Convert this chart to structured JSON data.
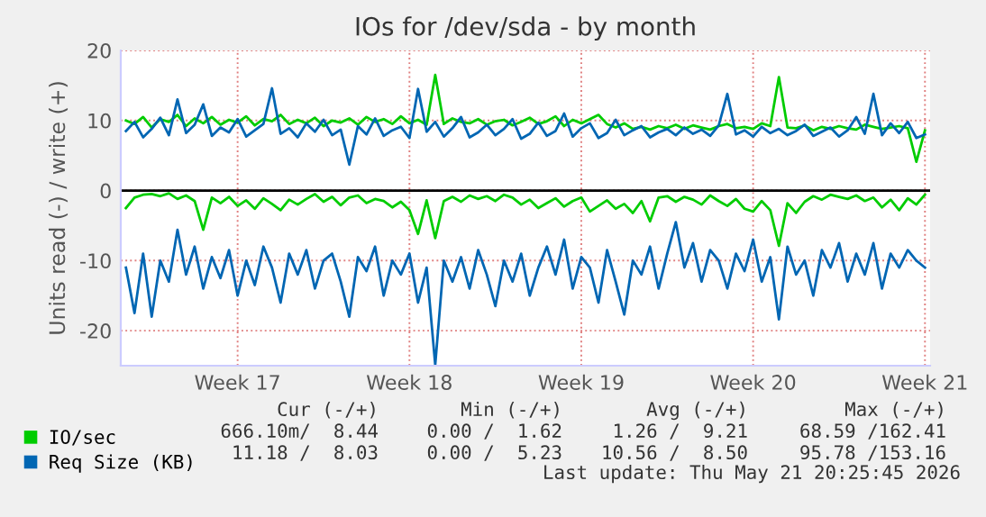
{
  "chart_data": {
    "type": "line",
    "title": "IOs for /dev/sda - by month",
    "ylabel": "Units read (-) / write (+)",
    "categories": [
      null,
      null,
      null,
      null,
      null,
      null,
      null,
      null,
      null,
      null,
      null,
      null,
      null,
      "Week 17",
      null,
      null,
      null,
      null,
      null,
      null,
      null,
      null,
      null,
      null,
      null,
      null,
      null,
      null,
      null,
      null,
      null,
      null,
      null,
      "Week 18",
      null,
      null,
      null,
      null,
      null,
      null,
      null,
      null,
      null,
      null,
      null,
      null,
      null,
      null,
      null,
      null,
      null,
      null,
      null,
      "Week 19",
      null,
      null,
      null,
      null,
      null,
      null,
      null,
      null,
      null,
      null,
      null,
      null,
      null,
      null,
      null,
      null,
      null,
      null,
      null,
      "Week 20",
      null,
      null,
      null,
      null,
      null,
      null,
      null,
      null,
      null,
      null,
      null,
      null,
      null,
      null,
      null,
      null,
      null,
      null,
      null,
      "Week 21"
    ],
    "series": [
      {
        "name": "IO/sec",
        "color": "#00cc00",
        "values": [
          10,
          9.5,
          10.5,
          9,
          10.2,
          9.8,
          10.8,
          9.2,
          10.3,
          9.6,
          10.5,
          9.4,
          10.1,
          9.7,
          10.6,
          9.3,
          10.2,
          9.9,
          10.8,
          9.5,
          10.1,
          9.6,
          10.4,
          9.2,
          10.0,
          9.7,
          10.3,
          9.4,
          10.5,
          9.8,
          10.2,
          9.5,
          10.6,
          9.6,
          10.1,
          9.4,
          16.5,
          9.5,
          10.3,
          9.8,
          9.6,
          10.2,
          9.4,
          9.9,
          10.1,
          9.3,
          9.8,
          10.4,
          9.5,
          9.9,
          10.6,
          9.2,
          10.1,
          9.6,
          10.2,
          10.8,
          9.5,
          9.0,
          9.6,
          8.8,
          9.1,
          8.7,
          9.2,
          8.9,
          9.4,
          8.8,
          9.3,
          9.0,
          8.7,
          9.2,
          9.5,
          8.9,
          9.1,
          8.8,
          9.6,
          9.2,
          16.2,
          9.0,
          8.9,
          9.3,
          8.6,
          9.1,
          8.8,
          9.2,
          8.9,
          8.7,
          9.4,
          9.1,
          8.8,
          9.0,
          9.2,
          8.9,
          4.1,
          8.6
        ]
      },
      {
        "color": "#00cc00",
        "values": [
          -2.5,
          -1.0,
          -0.6,
          -0.5,
          -0.8,
          -0.4,
          -1.2,
          -0.7,
          -1.5,
          -5.6,
          -1.0,
          -1.8,
          -0.9,
          -2.2,
          -1.4,
          -2.6,
          -1.1,
          -1.9,
          -2.8,
          -1.3,
          -2.0,
          -1.2,
          -0.5,
          -1.6,
          -0.9,
          -2.1,
          -1.0,
          -0.7,
          -1.8,
          -1.2,
          -1.5,
          -2.4,
          -1.6,
          -2.8,
          -6.2,
          -1.4,
          -6.8,
          -1.5,
          -0.9,
          -1.6,
          -0.7,
          -1.2,
          -0.8,
          -1.5,
          -0.6,
          -1.0,
          -2.0,
          -1.3,
          -2.5,
          -1.8,
          -1.1,
          -2.3,
          -1.5,
          -1.0,
          -3.0,
          -2.2,
          -1.4,
          -2.6,
          -1.9,
          -3.2,
          -1.5,
          -4.4,
          -1.0,
          -0.8,
          -1.6,
          -0.9,
          -1.3,
          -2.0,
          -0.7,
          -1.5,
          -2.2,
          -1.2,
          -2.6,
          -3.0,
          -1.5,
          -2.8,
          -7.9,
          -1.8,
          -3.2,
          -1.6,
          -0.8,
          -1.3,
          -0.6,
          -0.9,
          -1.2,
          -0.7,
          -1.5,
          -1.0,
          -2.4,
          -1.3,
          -2.8,
          -1.1,
          -2.0,
          -0.6
        ]
      },
      {
        "name": "Req Size (KB)",
        "color": "#0066b3",
        "values": [
          8.5,
          9.8,
          7.6,
          8.8,
          10.4,
          7.9,
          13.0,
          8.2,
          9.4,
          12.3,
          7.8,
          9.0,
          8.3,
          10.2,
          7.7,
          8.6,
          9.5,
          14.6,
          8.1,
          8.9,
          7.6,
          9.6,
          8.4,
          10.1,
          7.9,
          8.7,
          3.7,
          9.2,
          8.0,
          10.3,
          7.8,
          8.6,
          9.1,
          7.5,
          14.5,
          8.4,
          9.8,
          7.7,
          8.9,
          10.5,
          7.6,
          8.3,
          9.4,
          7.9,
          8.8,
          10.2,
          7.4,
          8.1,
          9.7,
          7.8,
          8.5,
          11.0,
          7.7,
          8.9,
          9.6,
          7.5,
          8.2,
          10.1,
          7.9,
          8.6,
          9.2,
          7.6,
          8.3,
          8.8,
          7.9,
          9.0,
          8.1,
          8.7,
          7.8,
          9.3,
          13.8,
          8.0,
          8.6,
          7.7,
          9.1,
          8.2,
          8.8,
          7.9,
          8.5,
          9.4,
          7.8,
          8.4,
          9.0,
          7.7,
          8.6,
          10.5,
          8.1,
          13.8,
          7.9,
          9.6,
          8.2,
          9.8,
          7.5,
          8.0
        ]
      },
      {
        "color": "#0066b3",
        "values": [
          -11,
          -17.5,
          -9,
          -18,
          -10,
          -13,
          -5.6,
          -12,
          -8,
          -14,
          -9.5,
          -12.5,
          -8.5,
          -15,
          -10,
          -13.5,
          -8,
          -11,
          -16,
          -9,
          -12,
          -8.5,
          -14,
          -10,
          -9,
          -13,
          -18,
          -9.5,
          -11.5,
          -8,
          -15,
          -10,
          -12,
          -9,
          -16,
          -11,
          -24.9,
          -10,
          -13,
          -9.5,
          -14,
          -8.5,
          -12,
          -16.5,
          -10,
          -13,
          -9,
          -15,
          -11,
          -8,
          -12,
          -7,
          -14,
          -9.5,
          -11,
          -16,
          -8.5,
          -13,
          -17.7,
          -10,
          -12,
          -8,
          -14,
          -9,
          -4.5,
          -11,
          -7.5,
          -13,
          -8.5,
          -10,
          -14,
          -9,
          -11.5,
          -7,
          -13,
          -9.5,
          -18.4,
          -8,
          -12,
          -10,
          -15,
          -8.5,
          -11,
          -7.5,
          -13,
          -9,
          -12,
          -7.5,
          -14,
          -9,
          -11,
          -8.5,
          -10,
          -11
        ]
      }
    ],
    "ylim": [
      -25,
      20
    ],
    "yticks": [
      -20,
      -10,
      0,
      10,
      20
    ],
    "ref_lines": [
      {
        "axis": "y",
        "value": 0,
        "color": "#000000"
      }
    ],
    "grid": true,
    "legend": "bottom",
    "annotations": [
      "Cur (-/+)",
      "Min (-/+)",
      "Avg (-/+)",
      "Max (-/+)",
      "666.10m/  8.44",
      "0.00 /  1.62",
      "1.26 /  9.21",
      "68.59 /162.41",
      "11.18 /  8.03",
      "0.00 /  5.23",
      "10.56 /  8.50",
      "95.78 /153.16",
      "Last update: Thu May 21 20:25:45 2026"
    ]
  }
}
